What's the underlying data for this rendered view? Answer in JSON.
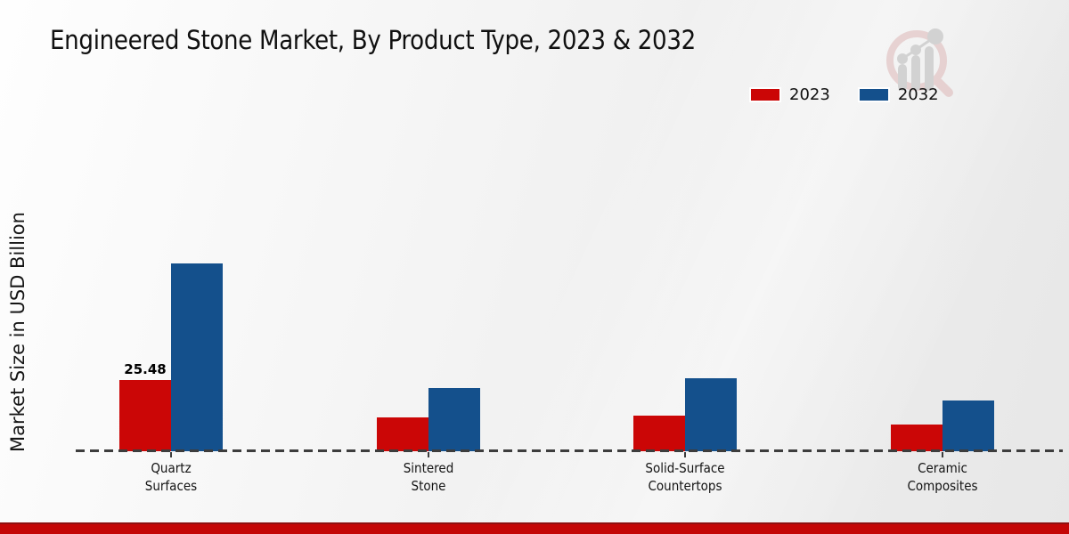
{
  "title": "Engineered Stone Market, By Product Type, 2023 & 2032",
  "ylabel": "Market Size in USD Billion",
  "legend": [
    {
      "label": "2023",
      "color": "#cb0606"
    },
    {
      "label": "2032",
      "color": "#14508c"
    }
  ],
  "colors": {
    "series_2023": "#cb0606",
    "series_2032": "#14508c",
    "footer_bar": "#c40606",
    "axis_dash": "#3d3d3d",
    "watermark_ring": "#dcb6b6",
    "watermark_bars": "#cfcfcf"
  },
  "watermark": "magnifier-bar-chart-logo",
  "chart_data": {
    "type": "bar",
    "title": "Engineered Stone Market, By Product Type, 2023 & 2032",
    "xlabel": "",
    "ylabel": "Market Size in USD Billion",
    "categories": [
      "Quartz Surfaces",
      "Sintered Stone",
      "Solid-Surface Countertops",
      "Ceramic Composites"
    ],
    "category_lines": [
      [
        "Quartz",
        "Surfaces"
      ],
      [
        "Sintered",
        "Stone"
      ],
      [
        "Solid-Surface",
        "Countertops"
      ],
      [
        "Ceramic",
        "Composites"
      ]
    ],
    "series": [
      {
        "name": "2023",
        "color": "#cb0606",
        "values": [
          25.48,
          12.1,
          12.7,
          9.6
        ]
      },
      {
        "name": "2032",
        "color": "#14508c",
        "values": [
          67.2,
          22.6,
          26.1,
          18.2
        ]
      }
    ],
    "data_labels": [
      {
        "series": "2023",
        "category": "Quartz Surfaces",
        "text": "25.48"
      }
    ],
    "ylim": [
      0,
      75
    ],
    "grid": false,
    "baseline_style": "dashed",
    "legend_position": "top-right",
    "units": "USD Billion"
  }
}
